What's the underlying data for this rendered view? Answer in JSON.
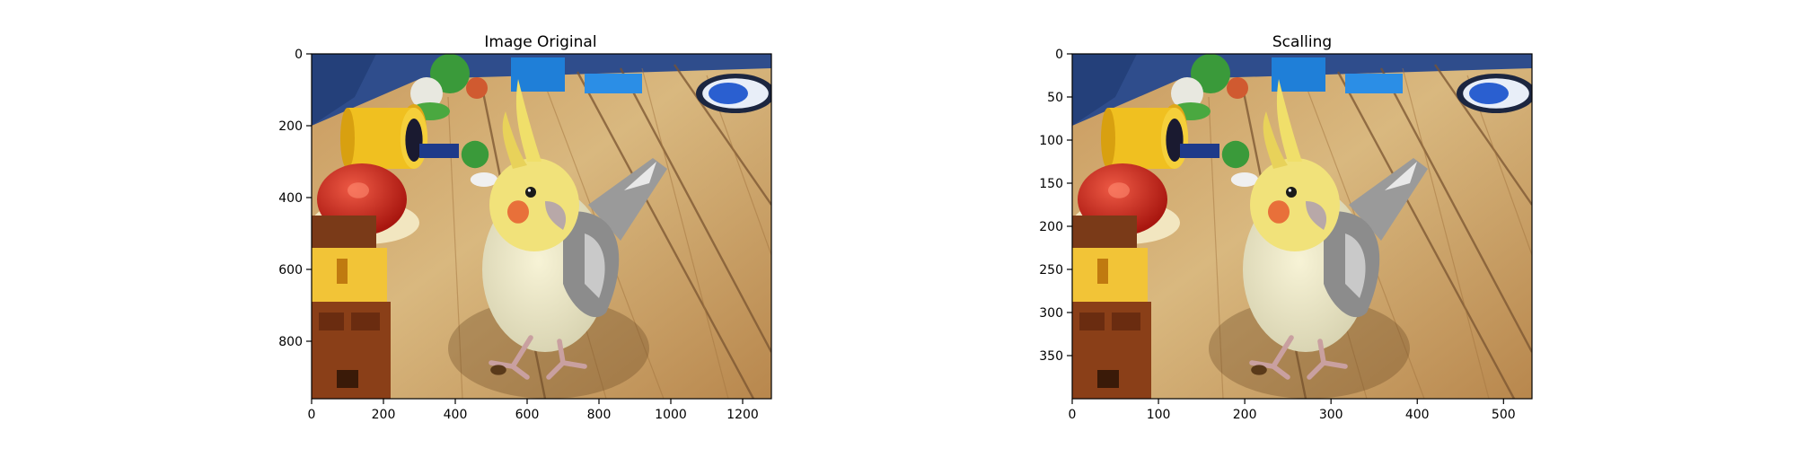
{
  "chart_data": [
    {
      "type": "image",
      "title": "Image Original",
      "image_width": 1280,
      "image_height": 960,
      "xlim": [
        0,
        1280
      ],
      "ylim": [
        960,
        0
      ],
      "x_ticks": [
        0,
        200,
        400,
        600,
        800,
        1000,
        1200
      ],
      "y_ticks": [
        0,
        200,
        400,
        600,
        800
      ],
      "y_inverted": true
    },
    {
      "type": "image",
      "title": "Scalling",
      "image_width": 533,
      "image_height": 400,
      "xlim": [
        0,
        533
      ],
      "ylim": [
        400,
        0
      ],
      "x_ticks": [
        0,
        100,
        200,
        300,
        400,
        500
      ],
      "y_ticks": [
        0,
        50,
        100,
        150,
        200,
        250,
        300,
        350
      ],
      "y_inverted": true
    }
  ],
  "colors": {
    "wood_light": "#d8b57e",
    "wood_mid": "#b88a52",
    "wood_dark": "#7a5430",
    "wall_blue": "#2f4d8c",
    "bird_body": "#ece8c8",
    "bird_head": "#f1e27a",
    "bird_cheek": "#e8703a",
    "bird_wing": "#8c8c8c",
    "shell_red": "#c8281e",
    "pipe_yellow": "#f0c020",
    "block_brown": "#7a3a18",
    "block_yellow": "#f2c437"
  }
}
